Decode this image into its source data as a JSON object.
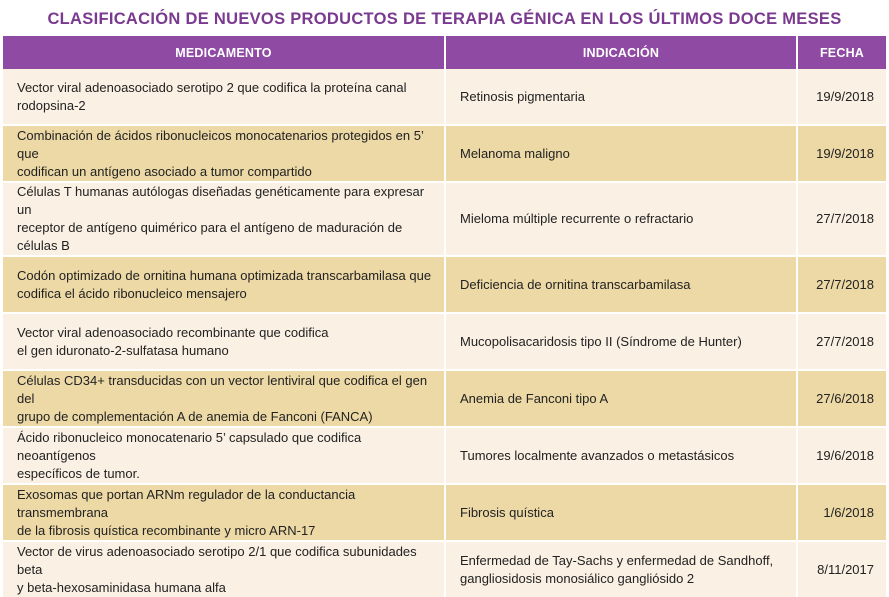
{
  "title": "CLASIFICACIÓN DE NUEVOS PRODUCTOS DE TERAPIA GÉNICA EN LOS ÚLTIMOS DOCE MESES",
  "columns": {
    "medicamento": "MEDICAMENTO",
    "indicacion": "INDICACIÓN",
    "fecha": "FECHA"
  },
  "colors": {
    "title": "#7a3a8f",
    "header_bg": "#8f4aa3",
    "row_light": "#faf0e4",
    "row_dark": "#edd9a6"
  },
  "rows": [
    {
      "medicamento": [
        "Vector viral adenoasociado serotipo 2 que codifica la proteína canal",
        "rodopsina-2"
      ],
      "indicacion": [
        "Retinosis pigmentaria"
      ],
      "fecha": "19/9/2018"
    },
    {
      "medicamento": [
        "Combinación de ácidos ribonucleicos monocatenarios protegidos en 5’ que",
        "codifican un antígeno asociado a tumor compartido"
      ],
      "indicacion": [
        "Melanoma maligno"
      ],
      "fecha": "19/9/2018"
    },
    {
      "medicamento": [
        "Células T humanas autólogas diseñadas genéticamente para expresar un",
        "receptor de antígeno quimérico para el antígeno de maduración de células B"
      ],
      "indicacion": [
        "Mieloma múltiple recurrente o refractario"
      ],
      "fecha": "27/7/2018"
    },
    {
      "medicamento": [
        "Codón optimizado de ornitina humana optimizada transcarbamilasa que",
        "codifica el ácido ribonucleico mensajero"
      ],
      "indicacion": [
        "Deficiencia de ornitina transcarbamilasa"
      ],
      "fecha": "27/7/2018"
    },
    {
      "medicamento": [
        "Vector viral adenoasociado recombinante que codifica",
        "el gen iduronato-2-sulfatasa humano"
      ],
      "indicacion": [
        "Mucopolisacaridosis tipo II (Síndrome de Hunter)"
      ],
      "fecha": "27/7/2018"
    },
    {
      "medicamento": [
        "Células CD34+ transducidas con un vector lentiviral que codifica el gen del",
        "grupo de complementación A de anemia de Fanconi (FANCA)"
      ],
      "indicacion": [
        "Anemia de Fanconi tipo A"
      ],
      "fecha": "27/6/2018"
    },
    {
      "medicamento": [
        "Ácido ribonucleico monocatenario 5’ capsulado que codifica neoantígenos",
        "específicos de tumor."
      ],
      "indicacion": [
        "Tumores localmente avanzados o metastásicos"
      ],
      "fecha": "19/6/2018"
    },
    {
      "medicamento": [
        "Exosomas que portan ARNm regulador de la conductancia transmembrana",
        "de la fibrosis quística recombinante y micro ARN-17"
      ],
      "indicacion": [
        "Fibrosis quística"
      ],
      "fecha": "1/6/2018"
    },
    {
      "medicamento": [
        "Vector de virus adenoasociado serotipo 2/1 que codifica subunidades beta",
        "y beta-hexosaminidasa humana alfa"
      ],
      "indicacion": [
        "Enfermedad de Tay-Sachs y enfermedad de Sandhoff,",
        "gangliosidosis monosiálico gangliósido 2"
      ],
      "fecha": "8/11/2017"
    }
  ]
}
